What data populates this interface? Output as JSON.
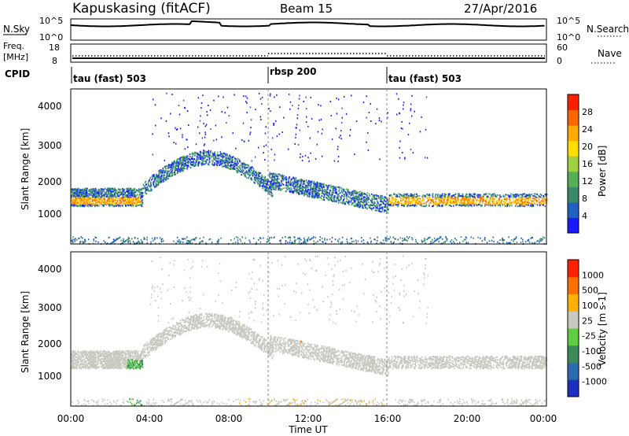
{
  "header": {
    "station": "Kapuskasing (fitACF)",
    "beam": "Beam 15",
    "date": "27/Apr/2016"
  },
  "top_panels": {
    "nsky_label": "N.Sky",
    "nsky_ticks": [
      "10^5",
      "10^0"
    ],
    "nsearch_label": "N.Search",
    "nsearch_ticks": [
      "10^5",
      "10^0"
    ],
    "freq_label_1": "Freq.",
    "freq_label_2": "[MHz]",
    "freq_ticks": [
      "18",
      "8"
    ],
    "nave_label": "Nave",
    "nave_ticks": [
      "60",
      "0"
    ],
    "cpid_label": "CPID",
    "cpid_segments": [
      {
        "label": "tau (fast) 503",
        "start_hour": 0
      },
      {
        "label": "rbsp 200",
        "start_hour": 10
      },
      {
        "label": "tau (fast) 503",
        "start_hour": 16
      }
    ]
  },
  "x_axis": {
    "label": "Time UT",
    "ticks": [
      "00:00",
      "04:00",
      "08:00",
      "12:00",
      "16:00",
      "20:00",
      "00:00"
    ],
    "range_hours": [
      0,
      24
    ]
  },
  "chart_data": [
    {
      "type": "heatmap",
      "ylabel": "Slant Range [km]",
      "yticks": [
        "4000",
        "3000",
        "2000",
        "1000"
      ],
      "ylim": [
        180,
        4500
      ],
      "colorbar_label": "Power [dB]",
      "colorbar_ticks": [
        "28",
        "24",
        "20",
        "16",
        "12",
        "8",
        "4"
      ],
      "colors": [
        "#1a1aff",
        "#2060c0",
        "#3a8a6a",
        "#55b055",
        "#a0d040",
        "#ffdd00",
        "#ffaa00",
        "#ff6600",
        "#ff2000"
      ],
      "backscatter_bands": [
        {
          "name": "morning",
          "hours": [
            0,
            3.5
          ],
          "range_km": [
            1300,
            1750
          ],
          "power_db": 20
        },
        {
          "name": "arc",
          "hours": [
            3.5,
            10
          ],
          "range_km": [
            2000,
            2800
          ],
          "power_db": 8
        },
        {
          "name": "evening",
          "hours": [
            10,
            16
          ],
          "range_km": [
            1000,
            1800
          ],
          "power_db": 8
        },
        {
          "name": "night",
          "hours": [
            16,
            24
          ],
          "range_km": [
            1300,
            1550
          ],
          "power_db": 20
        }
      ]
    },
    {
      "type": "heatmap",
      "ylabel": "Slant Range [km]",
      "yticks": [
        "4000",
        "3000",
        "2000",
        "1000"
      ],
      "ylim": [
        180,
        4500
      ],
      "colorbar_label": "Velocity [m s-1]",
      "colorbar_ticks": [
        "1000",
        "500",
        "100",
        "25",
        "-25",
        "-100",
        "-500",
        "-1000"
      ],
      "colors": [
        "#1a30c0",
        "#2a6ab0",
        "#3a8a5a",
        "#60cc40",
        "#c8c8c0",
        "#ffb000",
        "#ff7000",
        "#ff2000"
      ]
    }
  ]
}
